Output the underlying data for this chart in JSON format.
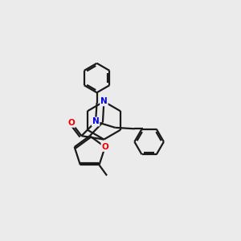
{
  "background_color": "#ebebeb",
  "bond_color": "#1a1a1a",
  "N_color": "#0000ee",
  "O_color": "#ee0000",
  "line_width": 1.6,
  "figsize": [
    3.0,
    3.0
  ],
  "dpi": 100,
  "xlim": [
    0,
    10
  ],
  "ylim": [
    0,
    10
  ]
}
